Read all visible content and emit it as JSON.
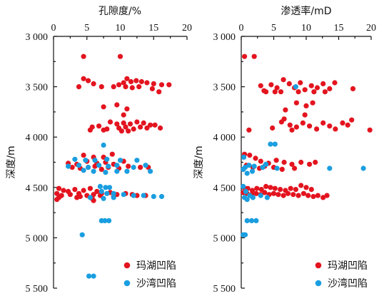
{
  "chart_data": [
    {
      "type": "scatter",
      "xlabel": "孔隙度/%",
      "ylabel": "深度/m",
      "xlim": [
        0,
        20
      ],
      "ylim": [
        3000,
        5500
      ],
      "y_inverted": true,
      "x_axis_position": "top",
      "xticks": [
        "0",
        "5",
        "10",
        "15",
        "20"
      ],
      "yticks": [
        "3 000",
        "3 500",
        "4 000",
        "4 500",
        "5 000",
        "5 500"
      ],
      "legend": "bottom-right",
      "series": [
        {
          "name": "玛湖凹陷",
          "color": "#e3141f",
          "points": [
            [
              4.5,
              3200
            ],
            [
              10,
              3200
            ],
            [
              4.5,
              3420
            ],
            [
              5.2,
              3440
            ],
            [
              6,
              3470
            ],
            [
              3.8,
              3500
            ],
            [
              7.2,
              3500
            ],
            [
              9,
              3500
            ],
            [
              9.8,
              3480
            ],
            [
              10.5,
              3460
            ],
            [
              11,
              3420
            ],
            [
              11.6,
              3450
            ],
            [
              12.4,
              3440
            ],
            [
              13.2,
              3450
            ],
            [
              14,
              3460
            ],
            [
              15,
              3470
            ],
            [
              16.2,
              3480
            ],
            [
              17.3,
              3480
            ],
            [
              10.8,
              3500
            ],
            [
              11.8,
              3510
            ],
            [
              12.8,
              3500
            ],
            [
              14.8,
              3520
            ],
            [
              15.8,
              3550
            ],
            [
              7.5,
              3700
            ],
            [
              9.5,
              3680
            ],
            [
              11,
              3720
            ],
            [
              10.5,
              3780
            ],
            [
              8.5,
              3850
            ],
            [
              9.5,
              3870
            ],
            [
              10.5,
              3860
            ],
            [
              11.5,
              3870
            ],
            [
              12.5,
              3850
            ],
            [
              13.5,
              3860
            ],
            [
              14.5,
              3880
            ],
            [
              5.8,
              3900
            ],
            [
              6.8,
              3890
            ],
            [
              8,
              3920
            ],
            [
              9.8,
              3910
            ],
            [
              10.8,
              3900
            ],
            [
              12,
              3920
            ],
            [
              13,
              3900
            ],
            [
              14,
              3910
            ],
            [
              15.2,
              3880
            ],
            [
              16,
              3910
            ],
            [
              5.5,
              3930
            ],
            [
              7.5,
              3930
            ],
            [
              10.2,
              3940
            ],
            [
              11.2,
              3940
            ],
            [
              2.2,
              4260
            ],
            [
              3.5,
              4270
            ],
            [
              5,
              4240
            ],
            [
              6.5,
              4260
            ],
            [
              7.8,
              4250
            ],
            [
              9,
              4270
            ],
            [
              10.5,
              4240
            ],
            [
              4.5,
              4180
            ],
            [
              6,
              4200
            ],
            [
              7.5,
              4200
            ],
            [
              8.8,
              4170
            ],
            [
              2.8,
              4300
            ],
            [
              4,
              4310
            ],
            [
              5.2,
              4300
            ],
            [
              6.2,
              4290
            ],
            [
              7.2,
              4320
            ],
            [
              8.2,
              4300
            ],
            [
              9.8,
              4310
            ],
            [
              11.2,
              4290
            ],
            [
              13,
              4300
            ],
            [
              14.2,
              4300
            ],
            [
              0.8,
              4510
            ],
            [
              1.5,
              4530
            ],
            [
              2.2,
              4540
            ],
            [
              3.2,
              4520
            ],
            [
              4.5,
              4530
            ],
            [
              5.5,
              4510
            ],
            [
              6.5,
              4540
            ],
            [
              0.5,
              4560
            ],
            [
              1.2,
              4580
            ],
            [
              2.5,
              4570
            ],
            [
              3.8,
              4560
            ],
            [
              5,
              4580
            ],
            [
              6,
              4570
            ],
            [
              7.2,
              4560
            ],
            [
              8.5,
              4550
            ],
            [
              9.5,
              4570
            ],
            [
              10.8,
              4560
            ],
            [
              11.8,
              4570
            ],
            [
              12.5,
              4580
            ],
            [
              13.8,
              4580
            ],
            [
              0.8,
              4600
            ],
            [
              4,
              4590
            ],
            [
              5.8,
              4610
            ],
            [
              7,
              4580
            ],
            [
              9,
              4590
            ],
            [
              0.5,
              4620
            ],
            [
              3.5,
              4600
            ],
            [
              6,
              4630
            ]
          ]
        },
        {
          "name": "沙湾凹陷",
          "color": "#1a9ee0",
          "points": [
            [
              7.5,
              4080
            ],
            [
              3.2,
              4220
            ],
            [
              4.8,
              4230
            ],
            [
              6.2,
              4230
            ],
            [
              8,
              4220
            ],
            [
              10,
              4230
            ],
            [
              12.5,
              4230
            ],
            [
              2.2,
              4290
            ],
            [
              3.8,
              4280
            ],
            [
              5.2,
              4300
            ],
            [
              6.8,
              4280
            ],
            [
              8.2,
              4290
            ],
            [
              9.5,
              4280
            ],
            [
              12,
              4300
            ],
            [
              13.8,
              4280
            ],
            [
              4.5,
              4330
            ],
            [
              6,
              4340
            ],
            [
              7.8,
              4350
            ],
            [
              9.5,
              4340
            ],
            [
              11,
              4340
            ],
            [
              14.5,
              4340
            ],
            [
              7,
              4490
            ],
            [
              7.8,
              4500
            ],
            [
              8.4,
              4500
            ],
            [
              7.2,
              4540
            ],
            [
              8,
              4560
            ],
            [
              9,
              4560
            ],
            [
              10.5,
              4570
            ],
            [
              12,
              4580
            ],
            [
              13.5,
              4580
            ],
            [
              15,
              4590
            ],
            [
              16.2,
              4590
            ],
            [
              5.5,
              4600
            ],
            [
              7.5,
              4610
            ],
            [
              9,
              4600
            ],
            [
              7.2,
              4830
            ],
            [
              7.7,
              4830
            ],
            [
              8.3,
              4830
            ],
            [
              4.3,
              4970
            ],
            [
              5.3,
              5380
            ],
            [
              6,
              5380
            ]
          ]
        }
      ]
    },
    {
      "type": "scatter",
      "xlabel": "渗透率/mD",
      "ylabel": "深度/m",
      "xlim": [
        0,
        20
      ],
      "ylim": [
        3000,
        5500
      ],
      "y_inverted": true,
      "x_axis_position": "top",
      "xticks": [
        "0",
        "5",
        "10",
        "15",
        "20"
      ],
      "yticks": [
        "3 000",
        "3 500",
        "4 000",
        "4 500",
        "5 000",
        "5 500"
      ],
      "legend": "bottom-right",
      "series": [
        {
          "name": "玛湖凹陷",
          "color": "#e3141f",
          "points": [
            [
              0.5,
              3200
            ],
            [
              2,
              3200
            ],
            [
              3,
              3490
            ],
            [
              3.8,
              3550
            ],
            [
              4.6,
              3480
            ],
            [
              5.5,
              3510
            ],
            [
              6.5,
              3430
            ],
            [
              7.4,
              3470
            ],
            [
              8.2,
              3510
            ],
            [
              9.1,
              3460
            ],
            [
              9.8,
              3530
            ],
            [
              10.8,
              3490
            ],
            [
              11.7,
              3510
            ],
            [
              12.6,
              3470
            ],
            [
              13.6,
              3520
            ],
            [
              14.4,
              3460
            ],
            [
              3.5,
              3540
            ],
            [
              5.2,
              3550
            ],
            [
              6.1,
              3550
            ],
            [
              8.8,
              3550
            ],
            [
              11.2,
              3550
            ],
            [
              12.9,
              3550
            ],
            [
              17.2,
              3520
            ],
            [
              6.8,
              3730
            ],
            [
              8.5,
              3660
            ],
            [
              10,
              3690
            ],
            [
              11,
              3660
            ],
            [
              6.6,
              3820
            ],
            [
              9.8,
              3780
            ],
            [
              4.8,
              3910
            ],
            [
              6.2,
              3850
            ],
            [
              7.5,
              3880
            ],
            [
              8.5,
              3900
            ],
            [
              9.5,
              3860
            ],
            [
              10.5,
              3890
            ],
            [
              11.6,
              3920
            ],
            [
              12.6,
              3860
            ],
            [
              13.6,
              3890
            ],
            [
              14.5,
              3920
            ],
            [
              15.6,
              3860
            ],
            [
              16.4,
              3880
            ],
            [
              17,
              3830
            ],
            [
              19.8,
              3930
            ],
            [
              1.2,
              3930
            ],
            [
              7.8,
              3930
            ],
            [
              0.5,
              4170
            ],
            [
              1.3,
              4180
            ],
            [
              2.2,
              4210
            ],
            [
              3,
              4240
            ],
            [
              4.2,
              4260
            ],
            [
              5.4,
              4230
            ],
            [
              6.6,
              4250
            ],
            [
              7.8,
              4270
            ],
            [
              9.2,
              4250
            ],
            [
              10.5,
              4270
            ],
            [
              11.4,
              4250
            ],
            [
              0.8,
              4280
            ],
            [
              1.8,
              4300
            ],
            [
              2.8,
              4310
            ],
            [
              0.3,
              4320
            ],
            [
              3.6,
              4290
            ],
            [
              5,
              4300
            ],
            [
              6.3,
              4320
            ],
            [
              8.2,
              4310
            ],
            [
              0.4,
              4500
            ],
            [
              1,
              4510
            ],
            [
              1.7,
              4530
            ],
            [
              2.4,
              4510
            ],
            [
              3.1,
              4520
            ],
            [
              3.8,
              4490
            ],
            [
              4.5,
              4500
            ],
            [
              5.2,
              4510
            ],
            [
              6,
              4520
            ],
            [
              6.8,
              4530
            ],
            [
              7.6,
              4510
            ],
            [
              8.4,
              4520
            ],
            [
              9.2,
              4480
            ],
            [
              10,
              4500
            ],
            [
              10.8,
              4520
            ],
            [
              0.3,
              4550
            ],
            [
              0.9,
              4560
            ],
            [
              1.6,
              4570
            ],
            [
              2.3,
              4560
            ],
            [
              3,
              4570
            ],
            [
              3.6,
              4550
            ],
            [
              4.3,
              4570
            ],
            [
              5,
              4560
            ],
            [
              5.7,
              4570
            ],
            [
              6.5,
              4580
            ],
            [
              7.2,
              4560
            ],
            [
              8,
              4570
            ],
            [
              8.8,
              4580
            ],
            [
              9.6,
              4560
            ],
            [
              10.3,
              4580
            ],
            [
              11.1,
              4590
            ],
            [
              11.8,
              4580
            ],
            [
              12.6,
              4600
            ],
            [
              13.2,
              4580
            ]
          ]
        },
        {
          "name": "沙湾凹陷",
          "color": "#1a9ee0",
          "points": [
            [
              8.4,
              3500
            ],
            [
              4.5,
              4070
            ],
            [
              5.2,
              4070
            ],
            [
              0.4,
              4200
            ],
            [
              0.3,
              4320
            ],
            [
              0.6,
              4300
            ],
            [
              1.2,
              4280
            ],
            [
              2,
              4290
            ],
            [
              3.3,
              4300
            ],
            [
              3.8,
              4270
            ],
            [
              0.9,
              4360
            ],
            [
              1.7,
              4340
            ],
            [
              5.5,
              4310
            ],
            [
              13.6,
              4310
            ],
            [
              18.8,
              4310
            ],
            [
              0.3,
              4490
            ],
            [
              0.7,
              4540
            ],
            [
              1.3,
              4580
            ],
            [
              0.5,
              4600
            ],
            [
              1.8,
              4600
            ],
            [
              3,
              4580
            ],
            [
              4,
              4600
            ],
            [
              0.9,
              4620
            ],
            [
              0.9,
              4830
            ],
            [
              1.6,
              4830
            ],
            [
              2.3,
              4830
            ],
            [
              0.3,
              4970
            ],
            [
              0.6,
              4970
            ]
          ]
        }
      ]
    }
  ]
}
